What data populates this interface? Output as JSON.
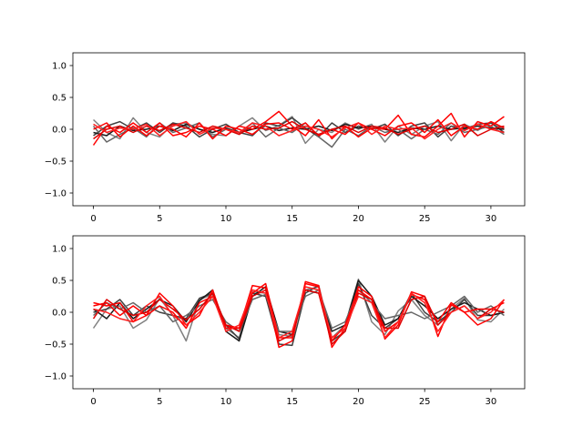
{
  "chart_data": [
    {
      "type": "line",
      "title": "",
      "xlabel": "",
      "ylabel": "",
      "xlim": [
        -1.55,
        32.55
      ],
      "ylim": [
        -1.2,
        1.2
      ],
      "xticks": [
        0,
        5,
        10,
        15,
        20,
        25,
        30
      ],
      "xtick_labels": [
        "0",
        "5",
        "10",
        "15",
        "20",
        "25",
        "30"
      ],
      "yticks": [
        -1.0,
        -0.5,
        0.0,
        0.5,
        1.0
      ],
      "ytick_labels": [
        "−1.0",
        "−0.5",
        "0.0",
        "0.5",
        "1.0"
      ],
      "grid": false,
      "x": [
        0,
        1,
        2,
        3,
        4,
        5,
        6,
        7,
        8,
        9,
        10,
        11,
        12,
        13,
        14,
        15,
        16,
        17,
        18,
        19,
        20,
        21,
        22,
        23,
        24,
        25,
        26,
        27,
        28,
        29,
        30,
        31
      ],
      "series": [
        {
          "color": "#808080",
          "values": [
            0.15,
            -0.05,
            -0.15,
            0.18,
            -0.05,
            -0.12,
            0.08,
            0.1,
            0.0,
            -0.08,
            -0.1,
            0.05,
            0.18,
            -0.02,
            0.06,
            0.2,
            -0.22,
            0.0,
            -0.05,
            0.1,
            0.0,
            0.08,
            -0.2,
            0.05,
            -0.08,
            0.05,
            0.12,
            -0.18,
            0.08,
            -0.02,
            0.1,
            0.0
          ]
        },
        {
          "color": "#404040",
          "values": [
            -0.1,
            0.05,
            0.12,
            0.0,
            0.1,
            -0.05,
            0.1,
            0.05,
            -0.12,
            0.0,
            0.08,
            -0.05,
            -0.1,
            0.1,
            0.05,
            0.18,
            0.02,
            -0.12,
            0.1,
            -0.05,
            0.05,
            0.0,
            0.08,
            -0.1,
            0.05,
            0.1,
            -0.12,
            0.05,
            0.0,
            0.08,
            0.1,
            -0.05
          ]
        },
        {
          "color": "#1a1a1a",
          "values": [
            -0.05,
            -0.1,
            0.05,
            -0.02,
            0.0,
            0.05,
            -0.02,
            0.08,
            0.0,
            -0.05,
            0.02,
            -0.05,
            0.0,
            0.05,
            -0.02,
            0.02,
            0.0,
            0.05,
            -0.02,
            0.08,
            0.02,
            0.05,
            0.0,
            -0.05,
            0.02,
            0.0,
            0.05,
            0.0,
            0.02,
            0.05,
            0.02,
            0.0
          ]
        },
        {
          "color": "#666666",
          "values": [
            0.05,
            -0.2,
            -0.08,
            0.02,
            -0.12,
            0.1,
            -0.05,
            0.02,
            0.1,
            -0.12,
            0.0,
            -0.08,
            0.1,
            -0.12,
            0.02,
            -0.05,
            0.1,
            -0.12,
            -0.28,
            0.0,
            -0.1,
            0.05,
            -0.05,
            0.0,
            -0.15,
            0.0,
            -0.08,
            0.1,
            -0.05,
            0.0,
            0.05,
            -0.08
          ]
        },
        {
          "color": "#ff0000",
          "values": [
            -0.25,
            0.05,
            -0.05,
            0.1,
            -0.05,
            0.1,
            -0.1,
            -0.05,
            0.05,
            0.0,
            -0.1,
            0.05,
            0.0,
            0.12,
            0.28,
            0.05,
            -0.1,
            0.15,
            -0.15,
            0.05,
            -0.12,
            0.02,
            0.0,
            0.22,
            -0.08,
            -0.12,
            0.05,
            0.25,
            -0.12,
            0.12,
            0.05,
            0.2
          ]
        },
        {
          "color": "#ff0000",
          "values": [
            0.0,
            0.1,
            -0.12,
            0.05,
            -0.1,
            0.05,
            0.0,
            -0.12,
            0.1,
            -0.15,
            0.05,
            0.0,
            -0.08,
            0.08,
            0.1,
            0.0,
            0.1,
            -0.1,
            0.0,
            -0.08,
            0.1,
            0.0,
            -0.1,
            0.05,
            0.1,
            -0.05,
            0.15,
            -0.1,
            0.05,
            0.0,
            0.12,
            0.02
          ]
        },
        {
          "color": "#dd0000",
          "values": [
            -0.15,
            0.0,
            0.05,
            -0.05,
            0.05,
            -0.02,
            0.08,
            0.02,
            -0.05,
            0.05,
            0.0,
            -0.08,
            0.05,
            0.0,
            0.02,
            0.12,
            0.0,
            -0.08,
            0.0,
            0.05,
            -0.05,
            0.05,
            0.02,
            -0.08,
            0.0,
            0.05,
            -0.05,
            0.0,
            0.08,
            -0.1,
            0.0,
            0.05
          ]
        },
        {
          "color": "#ff2020",
          "values": [
            0.08,
            -0.05,
            0.02,
            0.0,
            0.08,
            -0.1,
            0.05,
            0.12,
            -0.08,
            0.02,
            0.0,
            -0.05,
            0.1,
            0.05,
            -0.1,
            -0.02,
            0.05,
            0.0,
            -0.12,
            0.02,
            0.1,
            -0.08,
            0.05,
            0.0,
            0.02,
            -0.15,
            0.0,
            0.1,
            -0.02,
            0.08,
            0.0,
            -0.05
          ]
        }
      ]
    },
    {
      "type": "line",
      "title": "",
      "xlabel": "",
      "ylabel": "",
      "xlim": [
        -1.55,
        32.55
      ],
      "ylim": [
        -1.2,
        1.2
      ],
      "xticks": [
        0,
        5,
        10,
        15,
        20,
        25,
        30
      ],
      "xtick_labels": [
        "0",
        "5",
        "10",
        "15",
        "20",
        "25",
        "30"
      ],
      "yticks": [
        -1.0,
        -0.5,
        0.0,
        0.5,
        1.0
      ],
      "ytick_labels": [
        "−1.0",
        "−0.5",
        "0.0",
        "0.5",
        "1.0"
      ],
      "grid": false,
      "x": [
        0,
        1,
        2,
        3,
        4,
        5,
        6,
        7,
        8,
        9,
        10,
        11,
        12,
        13,
        14,
        15,
        16,
        17,
        18,
        19,
        20,
        21,
        22,
        23,
        24,
        25,
        26,
        27,
        28,
        29,
        30,
        31
      ],
      "series": [
        {
          "color": "#808080",
          "values": [
            -0.25,
            0.05,
            0.1,
            -0.25,
            -0.12,
            0.22,
            -0.05,
            -0.45,
            0.2,
            0.28,
            -0.25,
            -0.4,
            0.32,
            0.3,
            -0.35,
            -0.38,
            0.35,
            0.4,
            -0.4,
            -0.2,
            0.52,
            -0.15,
            -0.35,
            0.02,
            0.2,
            -0.05,
            -0.2,
            0.05,
            0.22,
            -0.12,
            -0.15,
            0.05
          ]
        },
        {
          "color": "#404040",
          "values": [
            0.0,
            0.05,
            0.2,
            -0.05,
            0.1,
            0.0,
            -0.05,
            -0.1,
            0.22,
            0.3,
            -0.2,
            -0.42,
            0.3,
            0.25,
            -0.5,
            -0.52,
            0.3,
            0.42,
            -0.45,
            -0.3,
            0.45,
            -0.05,
            -0.25,
            -0.1,
            0.3,
            0.0,
            -0.15,
            0.0,
            0.2,
            -0.05,
            -0.05,
            0.0
          ]
        },
        {
          "color": "#1a1a1a",
          "values": [
            0.05,
            -0.1,
            0.15,
            -0.1,
            0.05,
            0.2,
            0.1,
            -0.15,
            0.18,
            0.35,
            -0.3,
            -0.45,
            0.25,
            0.4,
            -0.3,
            -0.35,
            0.35,
            0.3,
            -0.3,
            -0.2,
            0.5,
            0.25,
            -0.2,
            -0.1,
            0.25,
            0.1,
            -0.1,
            0.05,
            0.15,
            0.05,
            -0.05,
            0.0
          ]
        },
        {
          "color": "#666666",
          "values": [
            -0.05,
            0.15,
            0.05,
            0.15,
            0.0,
            0.1,
            -0.15,
            -0.05,
            0.1,
            0.2,
            -0.15,
            -0.3,
            0.2,
            0.28,
            -0.3,
            -0.3,
            0.25,
            0.35,
            -0.25,
            -0.15,
            0.35,
            0.15,
            -0.1,
            -0.05,
            0.0,
            -0.1,
            0.0,
            0.1,
            0.25,
            0.0,
            0.1,
            -0.05
          ]
        },
        {
          "color": "#ff0000",
          "values": [
            0.1,
            0.15,
            -0.05,
            0.1,
            -0.05,
            0.3,
            0.1,
            -0.2,
            -0.05,
            0.35,
            -0.25,
            -0.25,
            0.42,
            0.38,
            -0.55,
            -0.45,
            0.48,
            0.42,
            -0.55,
            -0.25,
            0.4,
            0.25,
            -0.42,
            -0.2,
            0.32,
            0.25,
            -0.38,
            0.12,
            0.0,
            -0.2,
            -0.1,
            0.2
          ]
        },
        {
          "color": "#ff0000",
          "values": [
            0.15,
            0.1,
            0.15,
            -0.15,
            -0.05,
            0.1,
            0.0,
            -0.25,
            0.15,
            0.25,
            -0.2,
            -0.25,
            0.3,
            0.45,
            -0.4,
            -0.4,
            0.45,
            0.4,
            -0.45,
            -0.2,
            0.35,
            0.2,
            -0.3,
            -0.15,
            0.28,
            0.2,
            -0.15,
            0.15,
            0.0,
            0.05,
            0.05,
            0.15
          ]
        },
        {
          "color": "#dd0000",
          "values": [
            -0.1,
            0.2,
            0.05,
            -0.05,
            0.0,
            0.2,
            0.05,
            -0.12,
            0.05,
            0.3,
            -0.2,
            -0.3,
            0.25,
            0.35,
            -0.45,
            -0.35,
            0.35,
            0.3,
            -0.5,
            -0.3,
            0.3,
            0.2,
            -0.25,
            -0.25,
            0.2,
            0.25,
            -0.2,
            0.0,
            0.1,
            -0.1,
            0.05,
            0.0
          ]
        },
        {
          "color": "#ff2020",
          "values": [
            0.05,
            0.0,
            -0.1,
            -0.15,
            0.1,
            0.25,
            -0.05,
            -0.2,
            0.0,
            0.25,
            -0.3,
            -0.2,
            0.35,
            0.3,
            -0.4,
            -0.3,
            0.4,
            0.35,
            -0.4,
            -0.25,
            0.25,
            0.15,
            -0.4,
            -0.15,
            0.3,
            0.15,
            -0.3,
            0.0,
            0.1,
            -0.1,
            0.0,
            0.2
          ]
        }
      ]
    }
  ]
}
